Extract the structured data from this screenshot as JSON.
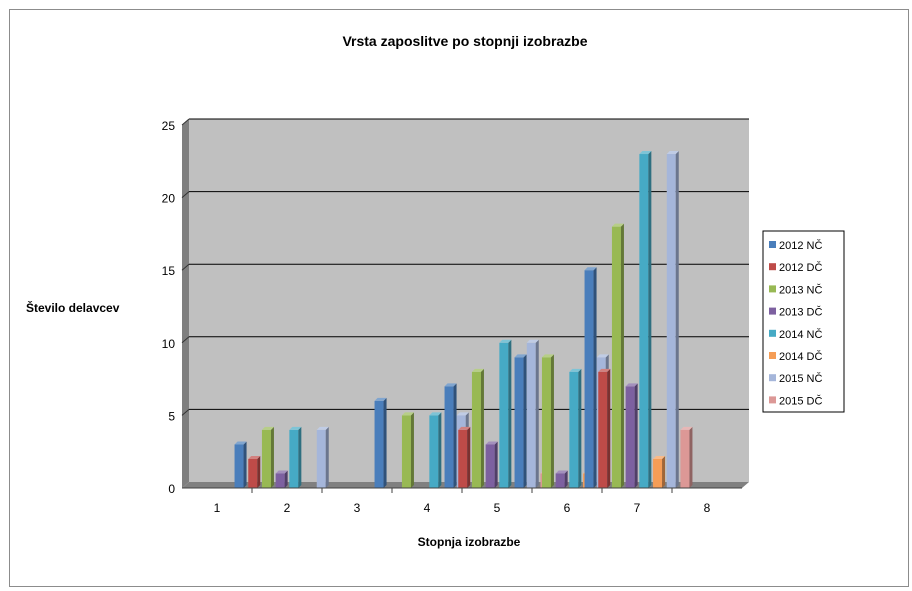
{
  "chart_data": {
    "type": "bar",
    "title": "Vrsta zaposlitve po stopnji izobrazbe",
    "xlabel": "Stopnja izobrazbe",
    "ylabel": "Število delavcev",
    "categories": [
      "1",
      "2",
      "3",
      "4",
      "5",
      "6",
      "7",
      "8"
    ],
    "ylim": [
      0,
      25
    ],
    "yticks": [
      0,
      5,
      10,
      15,
      20,
      25
    ],
    "grid": true,
    "legend_position": "right",
    "series": [
      {
        "name": "2012 NČ",
        "color": "#4a7ebb",
        "values": [
          0,
          3,
          0,
          6,
          7,
          9,
          15,
          0
        ]
      },
      {
        "name": "2012 DČ",
        "color": "#be4b48",
        "values": [
          0,
          2,
          0,
          0,
          4,
          0,
          8,
          0
        ]
      },
      {
        "name": "2013 NČ",
        "color": "#98b954",
        "values": [
          0,
          4,
          0,
          5,
          8,
          9,
          18,
          0
        ]
      },
      {
        "name": "2013 DČ",
        "color": "#7d60a0",
        "values": [
          0,
          1,
          0,
          0,
          3,
          1,
          7,
          0
        ]
      },
      {
        "name": "2014 NČ",
        "color": "#46aac5",
        "values": [
          0,
          4,
          0,
          5,
          10,
          8,
          23,
          0
        ]
      },
      {
        "name": "2014 DČ",
        "color": "#f59d56",
        "values": [
          0,
          0,
          0,
          0,
          0,
          1,
          2,
          0
        ]
      },
      {
        "name": "2015 NČ",
        "color": "#a5b6da",
        "values": [
          0,
          4,
          0,
          5,
          10,
          9,
          23,
          0
        ]
      },
      {
        "name": "2015 DČ",
        "color": "#dc9896",
        "values": [
          0,
          0,
          0,
          0,
          1,
          0,
          4,
          0
        ]
      }
    ]
  }
}
